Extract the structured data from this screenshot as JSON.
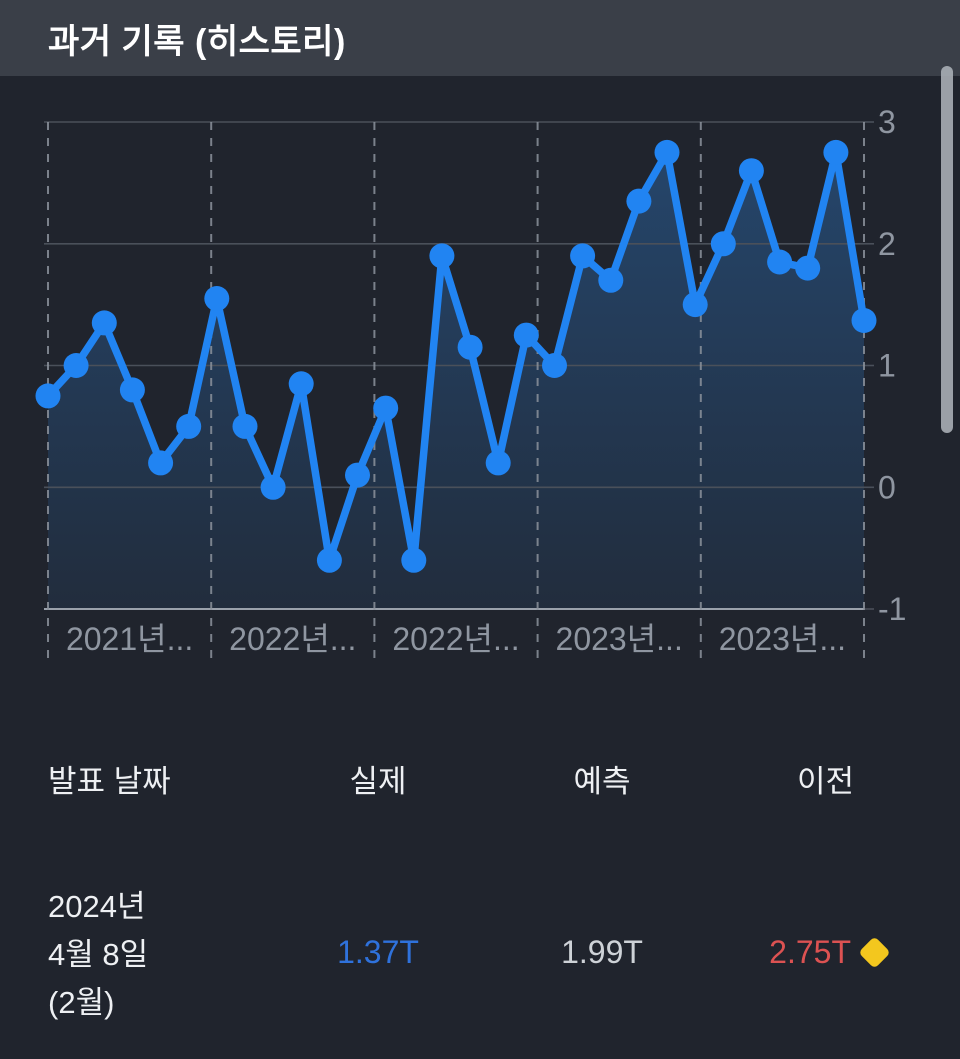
{
  "header": {
    "title": "과거 기록 (히스토리)"
  },
  "chart_data": {
    "type": "line",
    "title": "",
    "xlabel": "",
    "ylabel": "",
    "x_tick_labels": [
      "2021년...",
      "2022년...",
      "2022년...",
      "2023년...",
      "2023년..."
    ],
    "y_ticks": [
      3,
      2,
      1,
      0,
      -1
    ],
    "y_range": [
      -1,
      3
    ],
    "grid": {
      "horizontal": "solid",
      "vertical": "dashed"
    },
    "legend_position": "none",
    "series": [
      {
        "name": "실제",
        "color": "#2184f2",
        "area_fill_top": "rgba(45,120,200,0.42)",
        "area_fill_bottom": "rgba(45,120,200,0.10)",
        "values": [
          0.75,
          1.0,
          1.35,
          0.8,
          0.2,
          0.5,
          1.55,
          0.5,
          0.0,
          0.85,
          -0.6,
          0.1,
          0.65,
          -0.6,
          1.9,
          1.15,
          0.2,
          1.25,
          1.0,
          1.9,
          1.7,
          2.35,
          2.75,
          1.5,
          2.0,
          2.6,
          1.85,
          1.8,
          2.75,
          1.37
        ]
      }
    ]
  },
  "table": {
    "headers": {
      "date": "발표 날짜",
      "actual": "실제",
      "forecast": "예측",
      "previous": "이전"
    },
    "rows": [
      {
        "date_line1": "2024년",
        "date_line2": "4월 8일",
        "date_line3": "(2월)",
        "actual": "1.37T",
        "forecast": "1.99T",
        "previous": "2.75T",
        "revised_marker": "yellow-diamond"
      }
    ]
  },
  "colors": {
    "page_bg": "#20242d",
    "header_bg": "#3a3f48",
    "line": "#2184f2",
    "actual_text": "#2f72dc",
    "forecast_text": "#ced2d7",
    "previous_text": "#dc5252",
    "diamond": "#f3c71e",
    "axis_text": "#8f96a1",
    "grid_solid": "#4a505a",
    "grid_dashed": "#8b929c",
    "scrollbar": "#a9aeb5"
  }
}
